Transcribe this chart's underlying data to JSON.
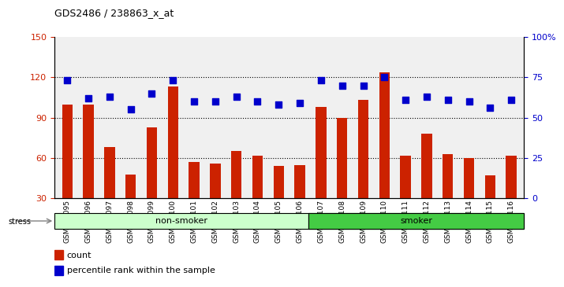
{
  "title": "GDS2486 / 238863_x_at",
  "categories": [
    "GSM101095",
    "GSM101096",
    "GSM101097",
    "GSM101098",
    "GSM101099",
    "GSM101100",
    "GSM101101",
    "GSM101102",
    "GSM101103",
    "GSM101104",
    "GSM101105",
    "GSM101106",
    "GSM101107",
    "GSM101108",
    "GSM101109",
    "GSM101110",
    "GSM101111",
    "GSM101112",
    "GSM101113",
    "GSM101114",
    "GSM101115",
    "GSM101116"
  ],
  "bar_values": [
    100,
    100,
    68,
    48,
    83,
    113,
    57,
    56,
    65,
    62,
    54,
    55,
    98,
    90,
    103,
    124,
    62,
    78,
    63,
    60,
    47,
    62
  ],
  "dot_values_pct": [
    73,
    62,
    63,
    55,
    65,
    73,
    60,
    60,
    63,
    60,
    58,
    59,
    73,
    70,
    70,
    75,
    61,
    63,
    61,
    60,
    56,
    61
  ],
  "bar_color": "#cc2200",
  "dot_color": "#0000cc",
  "background_color": "#f0f0f0",
  "left_ylim": [
    30,
    150
  ],
  "left_yticks": [
    30,
    60,
    90,
    120,
    150
  ],
  "right_ylim": [
    0,
    100
  ],
  "right_yticks": [
    0,
    25,
    50,
    75,
    100
  ],
  "right_yticklabels": [
    "0",
    "25",
    "50",
    "75",
    "100%"
  ],
  "non_smoker_color": "#ccffcc",
  "smoker_color": "#44cc44",
  "stress_label": "stress",
  "group_label_nonsmoker": "non-smoker",
  "group_label_smoker": "smoker",
  "legend_count_label": "count",
  "legend_pct_label": "percentile rank within the sample",
  "grid_color": "#000000",
  "dotted_at": [
    60,
    90,
    120
  ]
}
